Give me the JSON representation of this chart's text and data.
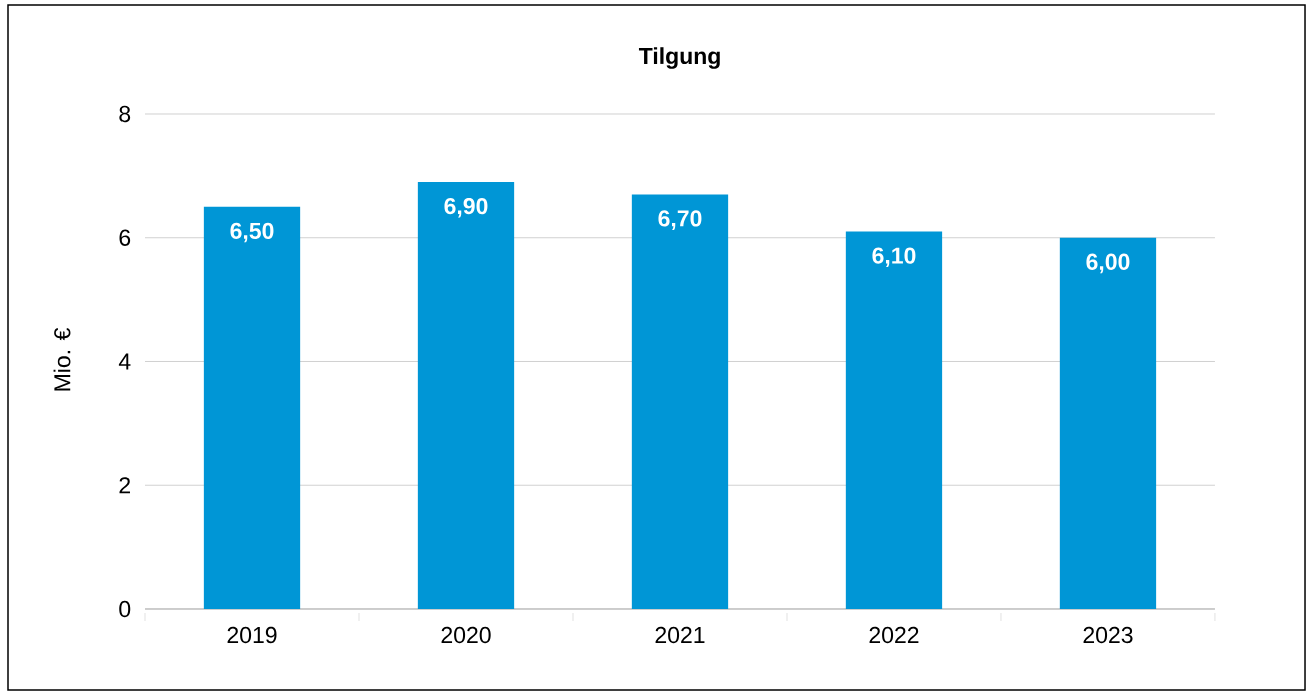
{
  "chart_data": {
    "type": "bar",
    "title": "Tilgung",
    "ylabel": "Mio. €",
    "categories": [
      "2019",
      "2020",
      "2021",
      "2022",
      "2023"
    ],
    "values": [
      6.5,
      6.9,
      6.7,
      6.1,
      6.0
    ],
    "value_labels": [
      "6,50",
      "6,90",
      "6,70",
      "6,10",
      "6,00"
    ],
    "color": "#0096d6",
    "ylim": [
      0,
      8
    ],
    "yticks": [
      0,
      2,
      4,
      6,
      8
    ],
    "grid": "y"
  }
}
